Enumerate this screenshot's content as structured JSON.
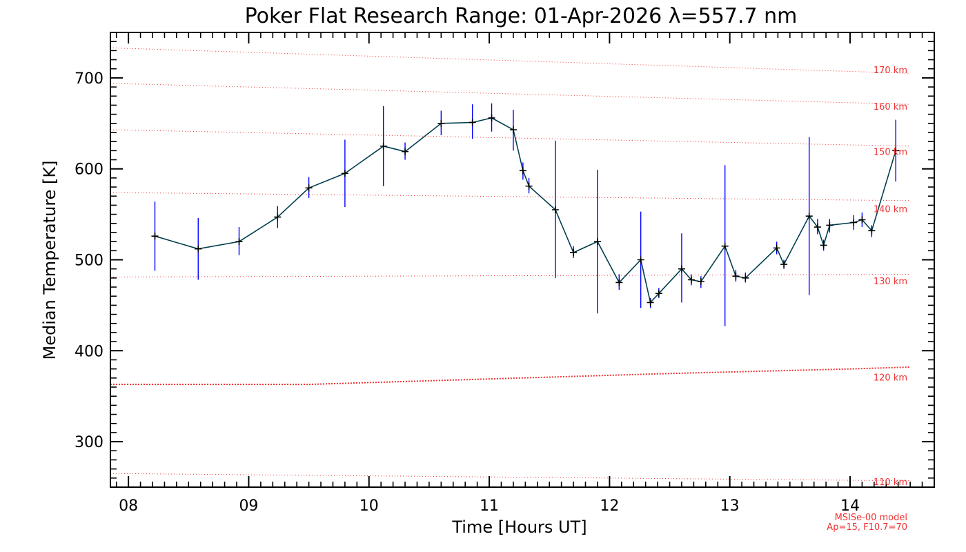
{
  "chart_data": {
    "type": "line",
    "title": "Poker Flat Research Range: 01-Apr-2026 λ=557.7 nm",
    "xlabel": "Time [Hours UT]",
    "ylabel": "Median Temperature [K]",
    "xlim": [
      7.85,
      14.7
    ],
    "ylim": [
      250,
      750
    ],
    "x_ticks": [
      {
        "value": 8,
        "label": "08"
      },
      {
        "value": 9,
        "label": "09"
      },
      {
        "value": 10,
        "label": "10"
      },
      {
        "value": 11,
        "label": "11"
      },
      {
        "value": 12,
        "label": "12"
      },
      {
        "value": 13,
        "label": "13"
      },
      {
        "value": 14,
        "label": "14"
      }
    ],
    "y_ticks": [
      {
        "value": 300,
        "label": "300"
      },
      {
        "value": 400,
        "label": "400"
      },
      {
        "value": 500,
        "label": "500"
      },
      {
        "value": 600,
        "label": "600"
      },
      {
        "value": 700,
        "label": "700"
      }
    ],
    "series": [
      {
        "color": "#003f4f",
        "errorbar_color": "#0000ff",
        "points": [
          {
            "x": 8.22,
            "y": 526,
            "lo": 488,
            "hi": 564
          },
          {
            "x": 8.58,
            "y": 512,
            "lo": 478,
            "hi": 546
          },
          {
            "x": 8.92,
            "y": 520,
            "lo": 505,
            "hi": 536
          },
          {
            "x": 9.24,
            "y": 547,
            "lo": 535,
            "hi": 559
          },
          {
            "x": 9.5,
            "y": 579,
            "lo": 568,
            "hi": 591
          },
          {
            "x": 9.8,
            "y": 595,
            "lo": 558,
            "hi": 632
          },
          {
            "x": 10.12,
            "y": 625,
            "lo": 581,
            "hi": 669
          },
          {
            "x": 10.3,
            "y": 619,
            "lo": 610,
            "hi": 629
          },
          {
            "x": 10.6,
            "y": 650,
            "lo": 637,
            "hi": 664
          },
          {
            "x": 10.86,
            "y": 651,
            "lo": 633,
            "hi": 671
          },
          {
            "x": 11.02,
            "y": 656,
            "lo": 641,
            "hi": 672
          },
          {
            "x": 11.2,
            "y": 643,
            "lo": 620,
            "hi": 665
          },
          {
            "x": 11.28,
            "y": 598,
            "lo": 588,
            "hi": 607
          },
          {
            "x": 11.33,
            "y": 581,
            "lo": 573,
            "hi": 590
          },
          {
            "x": 11.55,
            "y": 555,
            "lo": 480,
            "hi": 631
          },
          {
            "x": 11.7,
            "y": 508,
            "lo": 502,
            "hi": 515
          },
          {
            "x": 11.9,
            "y": 520,
            "lo": 441,
            "hi": 599
          },
          {
            "x": 12.08,
            "y": 475,
            "lo": 467,
            "hi": 484
          },
          {
            "x": 12.26,
            "y": 500,
            "lo": 447,
            "hi": 553
          },
          {
            "x": 12.34,
            "y": 453,
            "lo": 447,
            "hi": 458
          },
          {
            "x": 12.41,
            "y": 463,
            "lo": 458,
            "hi": 469
          },
          {
            "x": 12.6,
            "y": 490,
            "lo": 453,
            "hi": 529
          },
          {
            "x": 12.68,
            "y": 478,
            "lo": 472,
            "hi": 484
          },
          {
            "x": 12.76,
            "y": 476,
            "lo": 469,
            "hi": 482
          },
          {
            "x": 12.96,
            "y": 515,
            "lo": 427,
            "hi": 604
          },
          {
            "x": 13.05,
            "y": 482,
            "lo": 476,
            "hi": 489
          },
          {
            "x": 13.13,
            "y": 480,
            "lo": 475,
            "hi": 486
          },
          {
            "x": 13.39,
            "y": 513,
            "lo": 506,
            "hi": 520
          },
          {
            "x": 13.45,
            "y": 495,
            "lo": 490,
            "hi": 500
          },
          {
            "x": 13.66,
            "y": 548,
            "lo": 461,
            "hi": 635
          },
          {
            "x": 13.73,
            "y": 536,
            "lo": 528,
            "hi": 545
          },
          {
            "x": 13.78,
            "y": 516,
            "lo": 510,
            "hi": 522
          },
          {
            "x": 13.83,
            "y": 538,
            "lo": 530,
            "hi": 545
          },
          {
            "x": 14.03,
            "y": 541,
            "lo": 533,
            "hi": 549
          },
          {
            "x": 14.1,
            "y": 544,
            "lo": 536,
            "hi": 552
          },
          {
            "x": 14.18,
            "y": 532,
            "lo": 525,
            "hi": 538
          },
          {
            "x": 14.38,
            "y": 620,
            "lo": 586,
            "hi": 654
          }
        ]
      }
    ],
    "model_reference_lines": [
      {
        "label": "110 km",
        "color": "#ee3333",
        "points": [
          [
            7.85,
            265
          ],
          [
            14.5,
            257
          ]
        ]
      },
      {
        "label": "120 km",
        "color": "#ee3333",
        "thick": true,
        "points": [
          [
            7.85,
            363
          ],
          [
            9.5,
            363
          ],
          [
            11.0,
            369
          ],
          [
            12.5,
            375
          ],
          [
            14.0,
            380
          ],
          [
            14.5,
            382
          ]
        ]
      },
      {
        "label": "130 km",
        "color": "#ee3333",
        "points": [
          [
            7.85,
            481
          ],
          [
            14.5,
            484
          ]
        ]
      },
      {
        "label": "140 km",
        "color": "#ee3333",
        "points": [
          [
            7.85,
            574
          ],
          [
            14.5,
            565
          ]
        ]
      },
      {
        "label": "150 km",
        "color": "#ee3333",
        "points": [
          [
            7.85,
            643
          ],
          [
            14.5,
            625
          ]
        ]
      },
      {
        "label": "160 km",
        "color": "#ee3333",
        "points": [
          [
            7.85,
            694
          ],
          [
            14.5,
            671
          ]
        ]
      },
      {
        "label": "170 km",
        "color": "#ee3333",
        "points": [
          [
            7.85,
            733
          ],
          [
            14.5,
            705
          ]
        ]
      }
    ],
    "model_label_positions": [
      {
        "label": "110 km",
        "y": 256
      },
      {
        "label": "120 km",
        "y": 371
      },
      {
        "label": "130 km",
        "y": 477
      },
      {
        "label": "140 km",
        "y": 556
      },
      {
        "label": "150 km",
        "y": 619
      },
      {
        "label": "160 km",
        "y": 669
      },
      {
        "label": "170 km",
        "y": 709
      }
    ],
    "model_note": [
      "MSISe-00 model",
      "Ap=15, F10.7=70"
    ],
    "grid": false,
    "legend": "none"
  }
}
